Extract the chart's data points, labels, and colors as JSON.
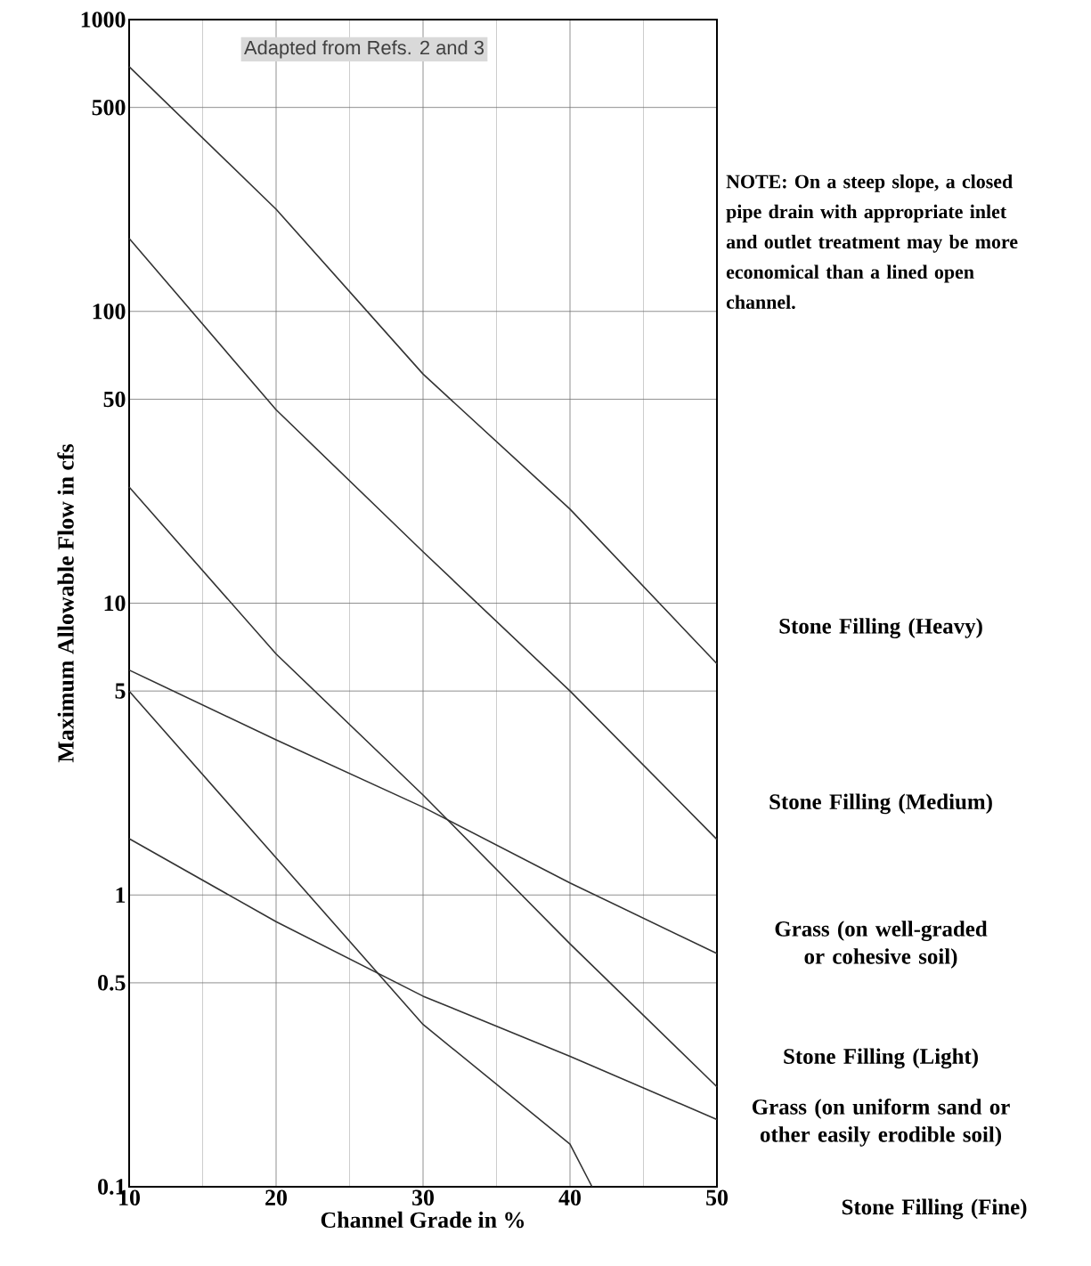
{
  "chart_data": {
    "type": "line",
    "xlabel": "Channel Grade in %",
    "ylabel": "Maximum Allowable Flow in cfs",
    "log": "y",
    "grid": true,
    "legend": false,
    "marker": "none",
    "line_style": "solid",
    "xlim": [
      10,
      50
    ],
    "ylim": [
      0.1,
      1000
    ],
    "xticks": [
      10,
      20,
      30,
      40,
      50
    ],
    "yticks": [
      0.1,
      0.5,
      1,
      5,
      10,
      50,
      100,
      500,
      1000
    ],
    "annotations": [
      "Adapted from Refs. 2 and 3",
      "NOTE: On a steep slope, a closed pipe drain with appropriate inlet and outlet treatment may be more economical than a lined open channel."
    ],
    "series": [
      {
        "name": "Stone Filling (Heavy)",
        "color": "#333333",
        "x": [
          10,
          20,
          30,
          40,
          50
        ],
        "values": [
          690,
          224,
          61,
          21,
          6.2
        ]
      },
      {
        "name": "Stone Filling (Medium)",
        "color": "#333333",
        "x": [
          10,
          20,
          30,
          40,
          50
        ],
        "values": [
          178,
          46,
          15,
          5.0,
          1.55
        ]
      },
      {
        "name": "Grass (on well-graded or cohesive soil)",
        "color": "#333333",
        "x": [
          10,
          20,
          30,
          40,
          50
        ],
        "values": [
          5.9,
          3.4,
          2.0,
          1.1,
          0.63
        ]
      },
      {
        "name": "Stone Filling (Light)",
        "color": "#333333",
        "x": [
          10,
          20,
          30,
          40,
          50
        ],
        "values": [
          25,
          6.7,
          2.2,
          0.68,
          0.22
        ]
      },
      {
        "name": "Grass (on uniform sand or other easily erodible soil)",
        "color": "#333333",
        "x": [
          10,
          20,
          30,
          40,
          50
        ],
        "values": [
          1.56,
          0.81,
          0.45,
          0.28,
          0.17
        ]
      },
      {
        "name": "Stone Filling (Fine)",
        "color": "#333333",
        "x": [
          10,
          20,
          30,
          40,
          41.5
        ],
        "values": [
          5.0,
          1.34,
          0.36,
          0.14,
          0.1
        ]
      }
    ]
  }
}
